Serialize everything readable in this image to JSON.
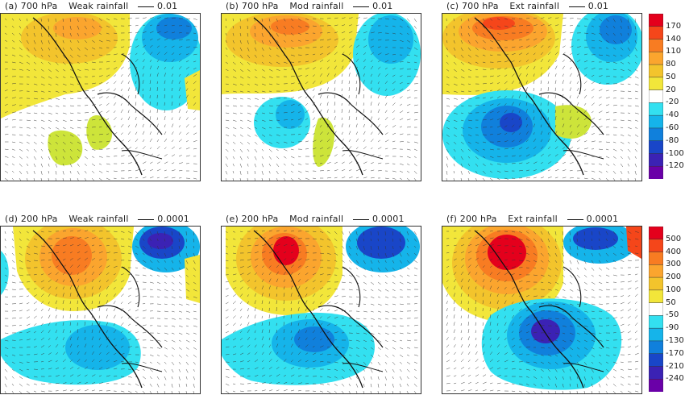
{
  "panels": [
    {
      "label": "(a)",
      "level": "700 hPa",
      "category": "Weak",
      "word": "rainfall",
      "ref": "0.01"
    },
    {
      "label": "(b)",
      "level": "700 hPa",
      "category": "Mod",
      "word": "rainfall",
      "ref": "0.01"
    },
    {
      "label": "(c)",
      "level": "700 hPa",
      "category": "Ext",
      "word": "rainfall",
      "ref": "0.01"
    },
    {
      "label": "(d)",
      "level": "200 hPa",
      "category": "Weak",
      "word": "rainfall",
      "ref": "0.0001"
    },
    {
      "label": "(e)",
      "level": "200 hPa",
      "category": "Mod",
      "word": "rainfall",
      "ref": "0.0001"
    },
    {
      "label": "(f)",
      "level": "200 hPa",
      "category": "Ext",
      "word": "rainfall",
      "ref": "0.0001"
    }
  ],
  "colorbar_top": {
    "labels": [
      "170",
      "140",
      "110",
      "80",
      "50",
      "20",
      "-20",
      "-40",
      "-60",
      "-80",
      "-100",
      "-120"
    ],
    "colors": [
      "#e4001c",
      "#f5461a",
      "#f87c22",
      "#fba52e",
      "#f3c42c",
      "#f2e63a",
      "#ffffff",
      "#33e0f0",
      "#15b4ea",
      "#1080dc",
      "#1946c8",
      "#3b22b4",
      "#6a00a8"
    ]
  },
  "colorbar_bottom": {
    "labels": [
      "500",
      "400",
      "300",
      "200",
      "100",
      "50",
      "-50",
      "-90",
      "-130",
      "-170",
      "-210",
      "-240"
    ],
    "colors": [
      "#e4001c",
      "#f5461a",
      "#f87c22",
      "#fba52e",
      "#f3c42c",
      "#f2e63a",
      "#ffffff",
      "#33e0f0",
      "#15b4ea",
      "#1080dc",
      "#1946c8",
      "#3b22b4",
      "#6a00a8"
    ]
  }
}
